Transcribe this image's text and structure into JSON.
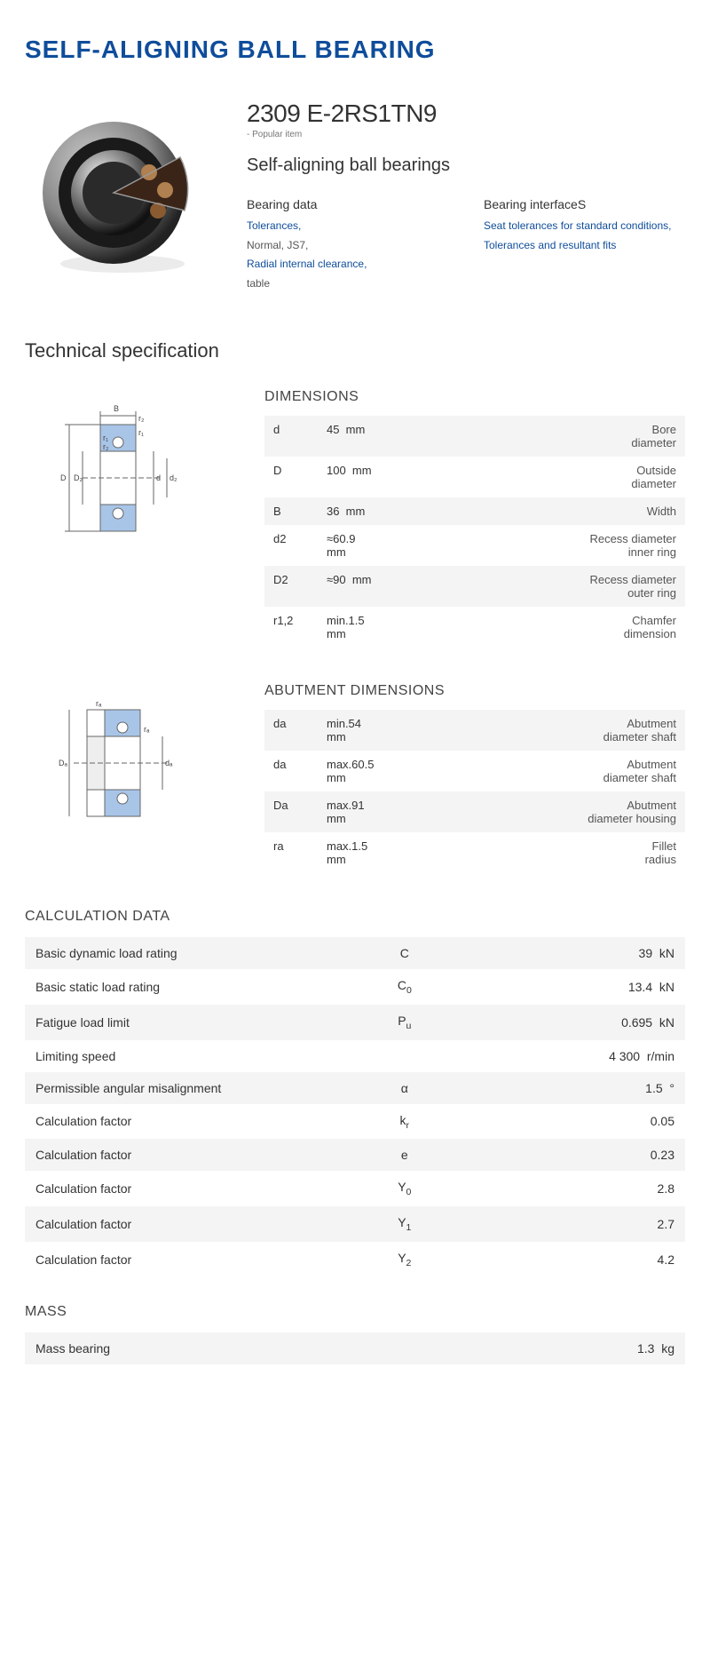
{
  "title": "SELF-ALIGNING BALL BEARING",
  "model": "2309 E-2RS1TN9",
  "popular": "- Popular item",
  "subtitle": "Self-aligning ball bearings",
  "info": {
    "col1_head": "Bearing data",
    "col1_l1": "Tolerances,",
    "col1_p1": "Normal, JS7,",
    "col1_l2": "Radial internal clearance,",
    "col1_p2": "table",
    "col2_head": "Bearing interfaceS",
    "col2_l1": "Seat tolerances for standard conditions,",
    "col2_l2": "Tolerances and resultant fits"
  },
  "tech_spec": "Technical specification",
  "dimensions": {
    "head": "DIMENSIONS",
    "rows": [
      {
        "sym": "d",
        "val": "45",
        "unit": "mm",
        "desc": "Bore diameter"
      },
      {
        "sym": "D",
        "val": "100",
        "unit": "mm",
        "desc": "Outside diameter"
      },
      {
        "sym": "B",
        "val": "36",
        "unit": "mm",
        "desc": "Width"
      },
      {
        "sym": "d2",
        "val": "≈60.9",
        "unit": "mm",
        "desc": "Recess diameter inner ring"
      },
      {
        "sym": "D2",
        "val": "≈90",
        "unit": "mm",
        "desc": "Recess diameter outer ring"
      },
      {
        "sym": "r1,2",
        "val": "min.1.5",
        "unit": "mm",
        "desc": "Chamfer dimension"
      }
    ]
  },
  "abutment": {
    "head": "ABUTMENT DIMENSIONS",
    "rows": [
      {
        "sym": "da",
        "val": "min.54",
        "unit": "mm",
        "desc": "Abutment diameter shaft"
      },
      {
        "sym": "da",
        "val": "max.60.5",
        "unit": "mm",
        "desc": "Abutment diameter shaft"
      },
      {
        "sym": "Da",
        "val": "max.91",
        "unit": "mm",
        "desc": "Abutment diameter housing"
      },
      {
        "sym": "ra",
        "val": "max.1.5",
        "unit": "mm",
        "desc": "Fillet radius"
      }
    ]
  },
  "calc": {
    "head": "CALCULATION DATA",
    "rows": [
      {
        "label": "Basic dynamic load rating",
        "sym": "C",
        "sub": "",
        "val": "39",
        "unit": "kN"
      },
      {
        "label": "Basic static load rating",
        "sym": "C",
        "sub": "0",
        "val": "13.4",
        "unit": "kN"
      },
      {
        "label": "Fatigue load limit",
        "sym": "P",
        "sub": "u",
        "val": "0.695",
        "unit": "kN"
      },
      {
        "label": "Limiting speed",
        "sym": "",
        "sub": "",
        "val": "4 300",
        "unit": "r/min"
      },
      {
        "label": "Permissible angular misalignment",
        "sym": "α",
        "sub": "",
        "val": "1.5",
        "unit": "°"
      },
      {
        "label": "Calculation factor",
        "sym": "k",
        "sub": "r",
        "val": "0.05",
        "unit": ""
      },
      {
        "label": "Calculation factor",
        "sym": "e",
        "sub": "",
        "val": "0.23",
        "unit": ""
      },
      {
        "label": "Calculation factor",
        "sym": "Y",
        "sub": "0",
        "val": "2.8",
        "unit": ""
      },
      {
        "label": "Calculation factor",
        "sym": "Y",
        "sub": "1",
        "val": "2.7",
        "unit": ""
      },
      {
        "label": "Calculation factor",
        "sym": "Y",
        "sub": "2",
        "val": "4.2",
        "unit": ""
      }
    ]
  },
  "mass": {
    "head": "MASS",
    "label": "Mass bearing",
    "val": "1.3",
    "unit": "kg"
  },
  "colors": {
    "accent": "#0f4d9b",
    "row_bg": "#f4f4f4",
    "diagram_blue": "#6fa0d6",
    "diagram_line": "#666"
  }
}
